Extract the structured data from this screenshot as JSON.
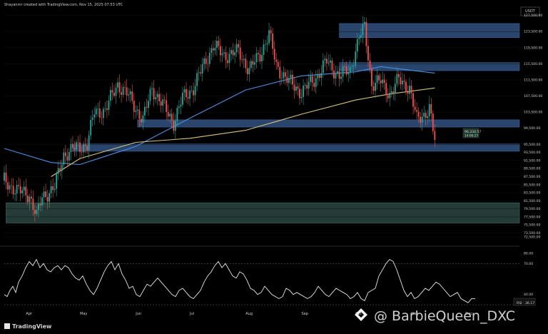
{
  "header": {
    "attribution": "Shayanmr created with TradingView.com, Nov 15, 2025 07:53 UTC",
    "currency": "USDT"
  },
  "footer": {
    "brand": "TradingView",
    "watermark": "@ BarbieQueen_DXC"
  },
  "colors": {
    "background": "#000000",
    "up_candle": "#26a69a",
    "down_candle": "#ef5350",
    "ma_blue": "#4a90e2",
    "ma_yellow": "#d7c27a",
    "zone_blue": "#2f4c78",
    "zone_teal": "#2c4542",
    "rsi_line": "#e6e6e6"
  },
  "chart_data": [
    {
      "type": "candlestick",
      "y_axis_ticks": [
        "127,500.00",
        "123,500.00",
        "119,500.00",
        "115,500.00",
        "111,500.00",
        "107,500.00",
        "103,500.00",
        "99,500.00",
        "95,500.00",
        "93,500.00",
        "91,500.00",
        "89,500.00",
        "87,500.00",
        "85,500.00",
        "83,500.00",
        "81,500.00",
        "79,500.00",
        "77,500.00",
        "75,500.00",
        "73,500.00",
        "72,500.00"
      ],
      "x_axis_labels": [
        "Apr",
        "May",
        "Jun",
        "Jul",
        "Aug",
        "Sep",
        "Oct",
        "Nov",
        "Dec"
      ],
      "price_labels": [
        "96,334.57",
        "14:06:27"
      ],
      "ylim": [
        72000,
        128500
      ],
      "zones": [
        {
          "name": "resistance-top",
          "from": 122000,
          "to": 125500,
          "x_from": "2025-09-22",
          "x_to": "2025-12-31"
        },
        {
          "name": "resistance-upper",
          "from": 113800,
          "to": 115800,
          "x_from": "2025-09-22",
          "x_to": "2025-12-31"
        },
        {
          "name": "support-mid",
          "from": 99800,
          "to": 101600,
          "x_from": "2025-06-02",
          "x_to": "2025-12-31"
        },
        {
          "name": "support-low",
          "from": 93800,
          "to": 95600,
          "x_from": "2025-04-27",
          "x_to": "2025-12-31"
        },
        {
          "name": "demand-zone",
          "from": 76000,
          "to": 81000,
          "x_from": "2025-03-21",
          "x_to": "2025-12-31"
        }
      ],
      "close_series": [
        [
          "2025-03-20",
          86500
        ],
        [
          "2025-03-27",
          84000
        ],
        [
          "2025-04-03",
          83000
        ],
        [
          "2025-04-07",
          77500
        ],
        [
          "2025-04-10",
          82500
        ],
        [
          "2025-04-17",
          84800
        ],
        [
          "2025-04-22",
          93000
        ],
        [
          "2025-04-28",
          94500
        ],
        [
          "2025-05-05",
          95500
        ],
        [
          "2025-05-09",
          103500
        ],
        [
          "2025-05-15",
          104000
        ],
        [
          "2025-05-22",
          110500
        ],
        [
          "2025-05-28",
          107500
        ],
        [
          "2025-06-05",
          101500
        ],
        [
          "2025-06-10",
          109500
        ],
        [
          "2025-06-17",
          104500
        ],
        [
          "2025-06-22",
          101000
        ],
        [
          "2025-06-27",
          107000
        ],
        [
          "2025-07-03",
          109500
        ],
        [
          "2025-07-10",
          116500
        ],
        [
          "2025-07-14",
          120000
        ],
        [
          "2025-07-20",
          117500
        ],
        [
          "2025-07-28",
          118500
        ],
        [
          "2025-08-03",
          114000
        ],
        [
          "2025-08-09",
          117800
        ],
        [
          "2025-08-14",
          123000
        ],
        [
          "2025-08-18",
          115000
        ],
        [
          "2025-08-25",
          111000
        ],
        [
          "2025-09-01",
          108500
        ],
        [
          "2025-09-08",
          111500
        ],
        [
          "2025-09-15",
          116000
        ],
        [
          "2025-09-22",
          112500
        ],
        [
          "2025-09-28",
          114000
        ],
        [
          "2025-10-03",
          122000
        ],
        [
          "2025-10-06",
          124500
        ],
        [
          "2025-10-10",
          110500
        ],
        [
          "2025-10-15",
          111000
        ],
        [
          "2025-10-20",
          108000
        ],
        [
          "2025-10-25",
          111500
        ],
        [
          "2025-10-31",
          109500
        ],
        [
          "2025-11-04",
          101500
        ],
        [
          "2025-11-08",
          103000
        ],
        [
          "2025-11-11",
          104500
        ],
        [
          "2025-11-14",
          96300
        ]
      ],
      "moving_averages": [
        {
          "name": "MA blue",
          "points": [
            [
              "2025-03-20",
              94500
            ],
            [
              "2025-04-15",
              91000
            ],
            [
              "2025-05-01",
              90500
            ],
            [
              "2025-06-01",
              95000
            ],
            [
              "2025-07-01",
              102000
            ],
            [
              "2025-08-01",
              109000
            ],
            [
              "2025-09-01",
              112500
            ],
            [
              "2025-10-01",
              113500
            ],
            [
              "2025-10-15",
              114800
            ],
            [
              "2025-11-14",
              113200
            ]
          ]
        },
        {
          "name": "MA yellow",
          "points": [
            [
              "2025-04-15",
              87500
            ],
            [
              "2025-05-01",
              92000
            ],
            [
              "2025-06-01",
              96000
            ],
            [
              "2025-07-01",
              97000
            ],
            [
              "2025-08-01",
              99000
            ],
            [
              "2025-09-01",
              103000
            ],
            [
              "2025-10-01",
              106500
            ],
            [
              "2025-10-20",
              108000
            ],
            [
              "2025-11-14",
              109500
            ]
          ]
        }
      ]
    },
    {
      "type": "line",
      "title": "RSI",
      "y_axis_ticks": [
        "80.00",
        "70.00",
        "40.00",
        "35.00"
      ],
      "rsi_labels": [
        "RSI",
        "36.17"
      ],
      "ylim": [
        28,
        82
      ],
      "values": [
        [
          0,
          40
        ],
        [
          4,
          38
        ],
        [
          8,
          44
        ],
        [
          12,
          48
        ],
        [
          16,
          42
        ],
        [
          20,
          52
        ],
        [
          25,
          58
        ],
        [
          30,
          66
        ],
        [
          35,
          72
        ],
        [
          40,
          68
        ],
        [
          45,
          74
        ],
        [
          50,
          66
        ],
        [
          55,
          70
        ],
        [
          60,
          64
        ],
        [
          65,
          62
        ],
        [
          70,
          66
        ],
        [
          75,
          68
        ],
        [
          80,
          64
        ],
        [
          85,
          68
        ],
        [
          90,
          66
        ],
        [
          95,
          60
        ],
        [
          100,
          56
        ],
        [
          105,
          54
        ],
        [
          110,
          58
        ],
        [
          115,
          50
        ],
        [
          120,
          44
        ],
        [
          125,
          40
        ],
        [
          130,
          46
        ],
        [
          135,
          54
        ],
        [
          140,
          62
        ],
        [
          145,
          68
        ],
        [
          150,
          72
        ],
        [
          155,
          64
        ],
        [
          160,
          70
        ],
        [
          165,
          60
        ],
        [
          170,
          54
        ],
        [
          175,
          46
        ],
        [
          180,
          48
        ],
        [
          185,
          40
        ],
        [
          190,
          38
        ],
        [
          195,
          44
        ],
        [
          200,
          50
        ],
        [
          205,
          48
        ],
        [
          210,
          52
        ],
        [
          215,
          56
        ],
        [
          220,
          52
        ],
        [
          225,
          48
        ],
        [
          230,
          44
        ],
        [
          235,
          40
        ],
        [
          240,
          38
        ],
        [
          245,
          44
        ],
        [
          250,
          46
        ],
        [
          255,
          42
        ],
        [
          260,
          38
        ],
        [
          265,
          36
        ],
        [
          270,
          40
        ],
        [
          275,
          44
        ],
        [
          280,
          52
        ],
        [
          285,
          58
        ],
        [
          290,
          62
        ],
        [
          295,
          68
        ],
        [
          300,
          72
        ],
        [
          305,
          66
        ],
        [
          310,
          70
        ],
        [
          315,
          64
        ],
        [
          320,
          58
        ],
        [
          325,
          56
        ],
        [
          330,
          62
        ],
        [
          335,
          60
        ],
        [
          340,
          54
        ],
        [
          345,
          46
        ],
        [
          350,
          44
        ],
        [
          355,
          40
        ],
        [
          360,
          42
        ],
        [
          365,
          48
        ],
        [
          370,
          44
        ],
        [
          375,
          40
        ],
        [
          380,
          38
        ],
        [
          385,
          36
        ],
        [
          390,
          38
        ],
        [
          395,
          46
        ],
        [
          400,
          44
        ],
        [
          405,
          40
        ],
        [
          410,
          42
        ],
        [
          415,
          40
        ],
        [
          420,
          38
        ],
        [
          425,
          36
        ],
        [
          430,
          38
        ],
        [
          435,
          42
        ],
        [
          440,
          48
        ],
        [
          445,
          44
        ],
        [
          450,
          40
        ],
        [
          455,
          38
        ],
        [
          460,
          42
        ],
        [
          465,
          46
        ],
        [
          470,
          44
        ],
        [
          475,
          42
        ],
        [
          480,
          40
        ],
        [
          485,
          36
        ],
        [
          490,
          38
        ],
        [
          495,
          42
        ],
        [
          500,
          36
        ],
        [
          505,
          34
        ],
        [
          510,
          42
        ],
        [
          515,
          44
        ],
        [
          520,
          46
        ],
        [
          525,
          58
        ],
        [
          530,
          64
        ],
        [
          535,
          70
        ],
        [
          540,
          74
        ],
        [
          545,
          72
        ],
        [
          550,
          64
        ],
        [
          555,
          54
        ],
        [
          560,
          44
        ],
        [
          565,
          38
        ],
        [
          570,
          42
        ],
        [
          575,
          36
        ],
        [
          580,
          38
        ],
        [
          585,
          42
        ],
        [
          590,
          46
        ],
        [
          595,
          44
        ],
        [
          600,
          48
        ],
        [
          605,
          52
        ],
        [
          610,
          50
        ],
        [
          615,
          46
        ],
        [
          620,
          42
        ],
        [
          625,
          38
        ],
        [
          630,
          40
        ],
        [
          635,
          42
        ],
        [
          640,
          36
        ],
        [
          645,
          34
        ],
        [
          650,
          32
        ],
        [
          655,
          36
        ],
        [
          660,
          36
        ]
      ]
    }
  ]
}
